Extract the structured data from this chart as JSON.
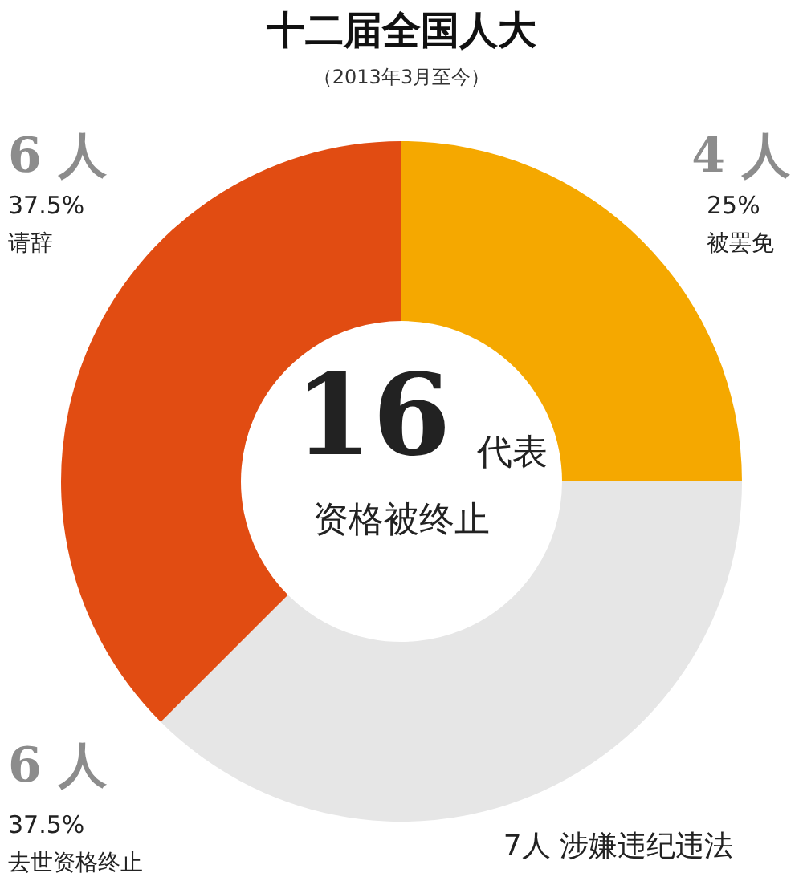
{
  "chart_data": {
    "type": "donut",
    "title": "十二届全国人大",
    "subtitle": "（2013年3月至今）",
    "categories": [
      "被罢免",
      "去世资格终止",
      "请辞"
    ],
    "values": [
      4,
      6,
      6
    ],
    "colors": [
      "#f5a800",
      "#e6e6e6",
      "#e14c12"
    ],
    "value_labels": [
      "4 人",
      "6 人",
      "6 人"
    ],
    "annotations": [
      "25%",
      "37.5%",
      "37.5%",
      "16",
      "代表",
      "资格被终止",
      "7人 涉嫌违纪违法"
    ]
  }
}
